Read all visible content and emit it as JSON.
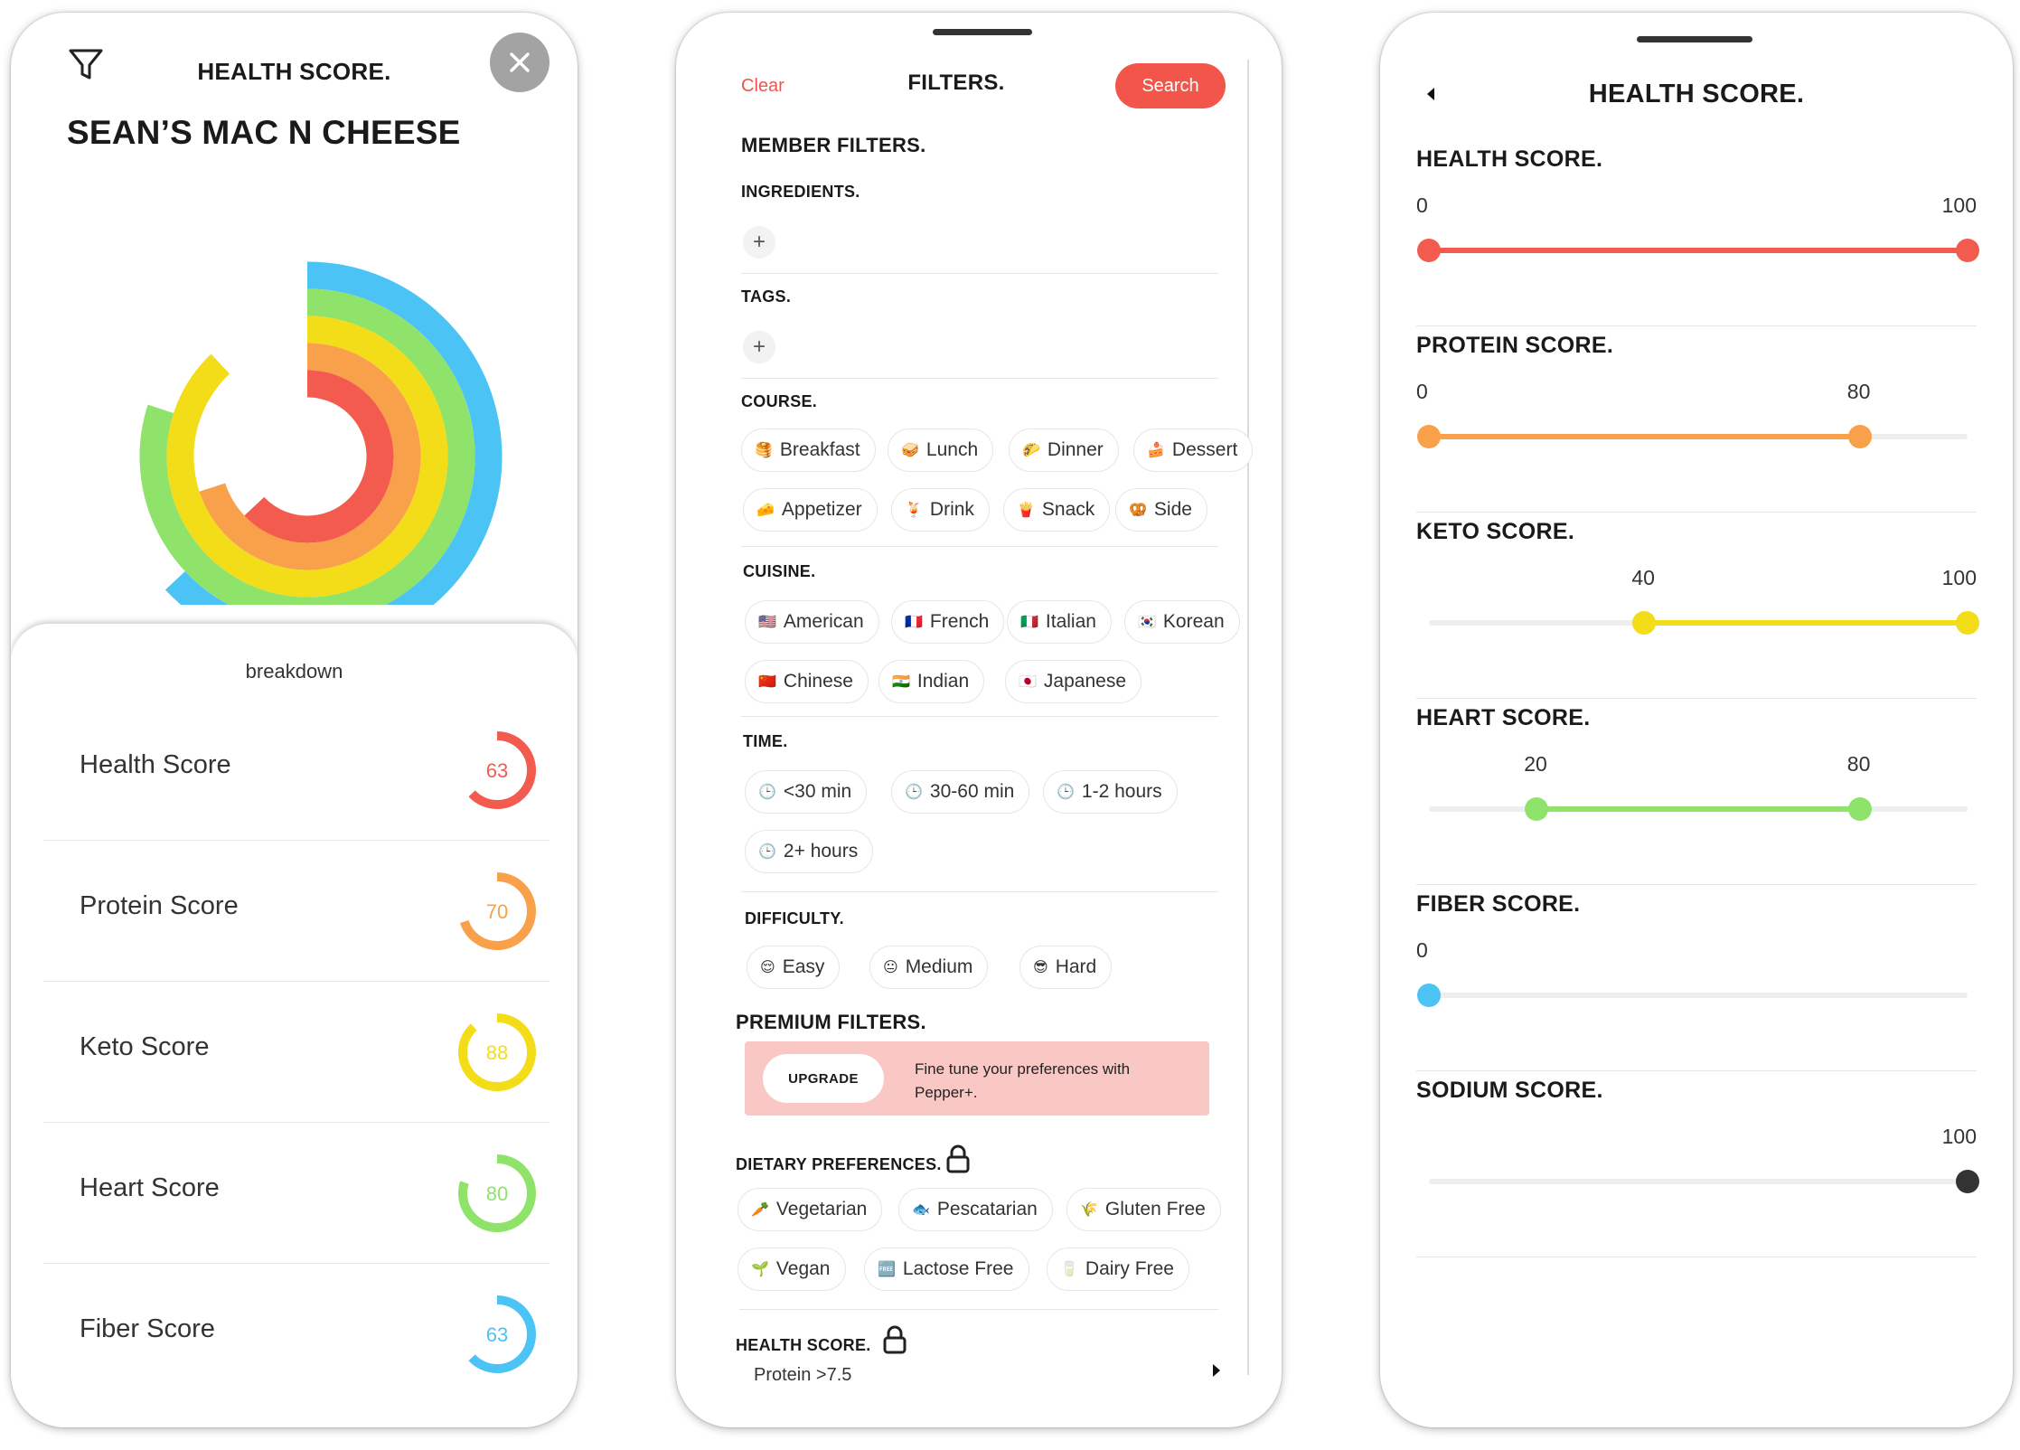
{
  "screen1": {
    "title": "HEALTH SCORE.",
    "recipe_name": "SEAN’S MAC N CHEESE",
    "breakdown_label": "breakdown",
    "rings": [
      {
        "name": "Health Score",
        "value": 63,
        "color": "#f35b4f"
      },
      {
        "name": "Protein Score",
        "value": 70,
        "color": "#f9a04b"
      },
      {
        "name": "Keto Score",
        "value": 88,
        "color": "#f3dc18"
      },
      {
        "name": "Heart Score",
        "value": 80,
        "color": "#8fe36a"
      },
      {
        "name": "Fiber Score",
        "value": 63,
        "color": "#4cc3f5"
      }
    ],
    "scores": [
      {
        "label": "Health Score",
        "value": "63",
        "color": "#f35b4f"
      },
      {
        "label": "Protein Score",
        "value": "70",
        "color": "#f9a04b"
      },
      {
        "label": "Keto Score",
        "value": "88",
        "color": "#f3dc18"
      },
      {
        "label": "Heart Score",
        "value": "80",
        "color": "#8fe36a"
      },
      {
        "label": "Fiber Score",
        "value": "63",
        "color": "#4cc3f5"
      }
    ]
  },
  "screen2": {
    "clear_label": "Clear",
    "title": "FILTERS.",
    "search_label": "Search",
    "member_filters": "MEMBER FILTERS.",
    "ingredients": "INGREDIENTS.",
    "tags": "TAGS.",
    "add_symbol": "+",
    "course": {
      "label": "COURSE.",
      "chips": [
        {
          "text": "Breakfast",
          "icon": "🥞"
        },
        {
          "text": "Lunch",
          "icon": "🥪"
        },
        {
          "text": "Dinner",
          "icon": "🌮"
        },
        {
          "text": "Dessert",
          "icon": "🍰"
        },
        {
          "text": "Appetizer",
          "icon": "🧀"
        },
        {
          "text": "Drink",
          "icon": "🍹"
        },
        {
          "text": "Snack",
          "icon": "🍟"
        },
        {
          "text": "Side",
          "icon": "🥨"
        }
      ]
    },
    "cuisine": {
      "label": "CUISINE.",
      "chips": [
        {
          "text": "American",
          "icon": "🇺🇸"
        },
        {
          "text": "French",
          "icon": "🇫🇷"
        },
        {
          "text": "Italian",
          "icon": "🇮🇹"
        },
        {
          "text": "Korean",
          "icon": "🇰🇷"
        },
        {
          "text": "Chinese",
          "icon": "🇨🇳"
        },
        {
          "text": "Indian",
          "icon": "🇮🇳"
        },
        {
          "text": "Japanese",
          "icon": "🇯🇵"
        }
      ]
    },
    "time": {
      "label": "TIME.",
      "chips": [
        {
          "text": "<30 min",
          "icon": "🕒"
        },
        {
          "text": "30-60 min",
          "icon": "🕒"
        },
        {
          "text": "1-2 hours",
          "icon": "🕒"
        },
        {
          "text": "2+ hours",
          "icon": "🕒"
        }
      ]
    },
    "difficulty": {
      "label": "DIFFICULTY.",
      "chips": [
        {
          "text": "Easy",
          "icon": "😌"
        },
        {
          "text": "Medium",
          "icon": "😐"
        },
        {
          "text": "Hard",
          "icon": "😎"
        }
      ]
    },
    "premium_filters": "PREMIUM FILTERS.",
    "upgrade_label": "UPGRADE",
    "upgrade_text": "Fine tune your preferences with Pepper+.",
    "dietary": {
      "label": "DIETARY PREFERENCES.",
      "chips": [
        {
          "text": "Vegetarian",
          "icon": "🥕"
        },
        {
          "text": "Pescatarian",
          "icon": "🐟"
        },
        {
          "text": "Gluten Free",
          "icon": "🌾"
        },
        {
          "text": "Vegan",
          "icon": "🌱"
        },
        {
          "text": "Lactose Free",
          "icon": "🆓"
        },
        {
          "text": "Dairy Free",
          "icon": "🥛"
        }
      ]
    },
    "health_score": {
      "label": "HEALTH SCORE.",
      "summary": "Protein >7.5"
    }
  },
  "screen3": {
    "title": "HEALTH SCORE.",
    "sliders": [
      {
        "title": "HEALTH SCORE.",
        "min": 0,
        "max": 100,
        "low": 0,
        "high": 100,
        "low_label": "0",
        "high_label": "100",
        "color": "#f35b4f"
      },
      {
        "title": "PROTEIN SCORE.",
        "min": 0,
        "max": 100,
        "low": 0,
        "high": 80,
        "low_label": "0",
        "high_label": "80",
        "color": "#f9a04b"
      },
      {
        "title": "KETO SCORE.",
        "min": 0,
        "max": 100,
        "low": 40,
        "high": 100,
        "low_label": "40",
        "high_label": "100",
        "color": "#f3dc18"
      },
      {
        "title": "HEART SCORE.",
        "min": 0,
        "max": 100,
        "low": 20,
        "high": 80,
        "low_label": "20",
        "high_label": "80",
        "color": "#8fe36a"
      },
      {
        "title": "FIBER SCORE.",
        "min": 0,
        "max": 100,
        "low": 0,
        "high": null,
        "low_label": "0",
        "high_label": "",
        "color": "#4cc3f5"
      },
      {
        "title": "SODIUM SCORE.",
        "min": 0,
        "max": 100,
        "low": null,
        "high": 100,
        "low_label": "",
        "high_label": "100",
        "color": "#333333"
      }
    ]
  }
}
